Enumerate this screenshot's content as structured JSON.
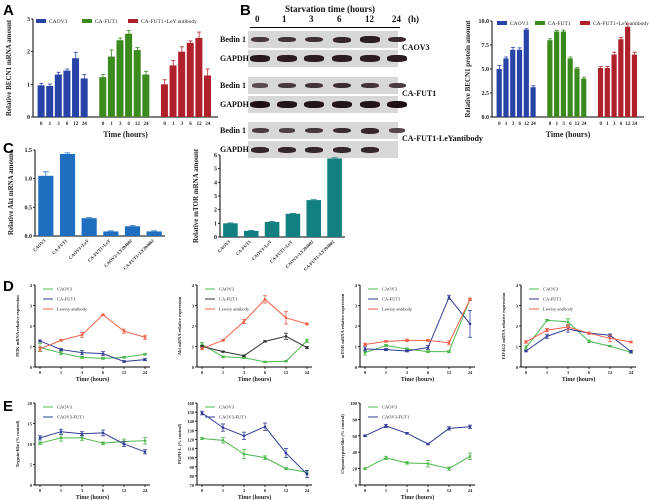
{
  "panels": {
    "A": "A",
    "B": "B",
    "C": "C",
    "D": "D",
    "E": "E"
  },
  "colors": {
    "blue": "#2743a8",
    "green": "#3a8a1e",
    "red": "#b0202a",
    "akt_bar": "#1f6fc0",
    "mtor_bar": "#128080",
    "line_green": "#4cb84c",
    "line_navy": "#323c96",
    "line_red": "#f0604a",
    "line_black": "#333333"
  },
  "blot": {
    "title": "Starvation time (hours)",
    "timepoints": [
      "0",
      "1",
      "3",
      "6",
      "12",
      "24"
    ],
    "unit": "(h)",
    "row_labels": [
      "Bedin 1",
      "GAPDH"
    ],
    "groups": [
      {
        "name": "CAOV3",
        "bedin": [
          0.55,
          0.6,
          0.65,
          0.75,
          0.85,
          0.7
        ],
        "gapdh": [
          0.9,
          0.85,
          0.85,
          0.85,
          0.85,
          0.85
        ]
      },
      {
        "name": "CA-FUT1",
        "bedin": [
          0.35,
          0.55,
          0.6,
          0.7,
          0.6,
          0.5
        ],
        "gapdh": [
          1.0,
          0.95,
          0.95,
          0.95,
          0.95,
          1.0
        ]
      },
      {
        "name": "CA-FUT1-LeYantibody",
        "bedin": [
          0.5,
          0.45,
          0.55,
          0.7,
          0.75,
          0.4
        ],
        "gapdh": [
          0.75,
          0.75,
          0.75,
          0.75,
          0.75,
          0.0
        ]
      }
    ]
  },
  "chart_data": [
    {
      "id": "A",
      "type": "bar",
      "title": "",
      "xlabel": "Time (hours)",
      "ylabel": "Relative BECN1 mRNA amount",
      "ylim": [
        0,
        3
      ],
      "yticks": [
        "0",
        "1",
        "2",
        "3"
      ],
      "categories": [
        "0",
        "1",
        "3",
        "6",
        "12",
        "24"
      ],
      "legend": "top",
      "series": [
        {
          "name": "CAOV3",
          "values": [
            0.97,
            0.95,
            1.3,
            1.42,
            1.8,
            1.18
          ],
          "errors": [
            0.06,
            0.06,
            0.07,
            0.05,
            0.18,
            0.12
          ]
        },
        {
          "name": "CA-FUT1",
          "values": [
            1.22,
            1.85,
            2.35,
            2.55,
            2.05,
            1.3
          ],
          "errors": [
            0.08,
            0.2,
            0.07,
            0.1,
            0.08,
            0.1
          ]
        },
        {
          "name": "CA-FUT1+LeY antibody",
          "values": [
            1.0,
            1.58,
            2.0,
            2.27,
            2.42,
            1.27
          ],
          "errors": [
            0.14,
            0.15,
            0.15,
            0.06,
            0.18,
            0.2
          ]
        }
      ]
    },
    {
      "id": "B",
      "type": "bar",
      "title": "",
      "xlabel": "Time (hours)",
      "ylabel": "Relative BECN1 protein amount",
      "ylim": [
        0,
        10
      ],
      "yticks": [
        "0.0",
        "2.5",
        "5.0",
        "7.5",
        "10.0"
      ],
      "categories": [
        "0",
        "1",
        "3",
        "6",
        "12",
        "24"
      ],
      "legend": "top",
      "series": [
        {
          "name": "CAOV3",
          "values": [
            5.0,
            6.1,
            7.0,
            7.0,
            9.1,
            3.1
          ],
          "errors": [
            0.35,
            0.15,
            0.25,
            0.2,
            0.1,
            0.15
          ]
        },
        {
          "name": "CA-FUT1",
          "values": [
            8.0,
            8.9,
            8.9,
            6.1,
            5.05,
            4.0
          ],
          "errors": [
            0.15,
            0.1,
            0.15,
            0.15,
            0.1,
            0.15
          ]
        },
        {
          "name": "CA-FUT1+LeY antibody",
          "values": [
            5.1,
            5.1,
            6.5,
            8.1,
            9.4,
            6.5
          ],
          "errors": [
            0.15,
            0.15,
            0.25,
            0.2,
            0.3,
            0.25
          ]
        }
      ]
    },
    {
      "id": "C-akt",
      "type": "bar",
      "title": "",
      "xlabel": "",
      "ylabel": "Relative Akt mRNA amount",
      "ylim": [
        0,
        1.5
      ],
      "yticks": [
        "0.0",
        "0.5",
        "1.0",
        "1.5"
      ],
      "categories": [
        "CAOV3",
        "CA-FUT1",
        "CAOV3+LeY",
        "CA-FUT1+LeY",
        "CAOV3+LY294002",
        "CA-FUT1+LY294002"
      ],
      "values": [
        1.05,
        1.43,
        0.31,
        0.08,
        0.17,
        0.08
      ],
      "errors": [
        0.07,
        0.02,
        0.01,
        0.01,
        0.01,
        0.01
      ]
    },
    {
      "id": "C-mtor",
      "type": "bar",
      "title": "",
      "xlabel": "",
      "ylabel": "Relative mTOR mRNA amount",
      "ylim": [
        0,
        6
      ],
      "yticks": [
        "0",
        "1",
        "2",
        "3",
        "4",
        "5",
        "6"
      ],
      "categories": [
        "CAOV3",
        "CA-FUT1",
        "CAOV3+LeY",
        "CA-FUT1+LeY",
        "CAOV3+LY294002",
        "CA-FUT1+LY294002"
      ],
      "values": [
        1.0,
        0.45,
        1.1,
        1.7,
        2.7,
        5.75
      ],
      "errors": [
        0.03,
        0.03,
        0.03,
        0.03,
        0.03,
        0.05
      ]
    },
    {
      "id": "D-pi3k",
      "type": "line",
      "xlabel": "Time (hours)",
      "ylabel": "PI3K mRNA relative expression",
      "ylim": [
        0,
        4
      ],
      "yticks": [
        "0",
        "1",
        "2",
        "3",
        "4"
      ],
      "categories": [
        "0",
        "1",
        "3",
        "6",
        "12",
        "24"
      ],
      "legend": "top-left",
      "series": [
        {
          "name": "CAOV3",
          "color": "line_green",
          "values": [
            0.95,
            0.68,
            0.47,
            0.42,
            0.47,
            0.62
          ],
          "errors": [
            0.2,
            0.08,
            0.04,
            0.04,
            0.04,
            0.04
          ]
        },
        {
          "name": "CA-FUT1",
          "color": "line_navy",
          "values": [
            1.27,
            0.85,
            0.7,
            0.65,
            0.27,
            0.36
          ],
          "errors": [
            0.05,
            0.05,
            0.1,
            0.1,
            0.04,
            0.05
          ]
        },
        {
          "name": "Lewisy antibody",
          "color": "line_red",
          "values": [
            0.88,
            1.3,
            1.57,
            2.55,
            1.75,
            1.45
          ],
          "errors": [
            0.1,
            0.04,
            0.12,
            0.03,
            0.1,
            0.1
          ]
        }
      ]
    },
    {
      "id": "D-akt",
      "type": "line",
      "xlabel": "Time (hours)",
      "ylabel": "Akt mRNA relative expression",
      "ylim": [
        0,
        4
      ],
      "yticks": [
        "0",
        "1",
        "2",
        "3",
        "4"
      ],
      "categories": [
        "0",
        "1",
        "3",
        "6",
        "12",
        "24"
      ],
      "legend": "top-left",
      "series": [
        {
          "name": "CAOV3",
          "color": "line_green",
          "values": [
            1.1,
            0.5,
            0.45,
            0.25,
            0.28,
            1.28
          ],
          "errors": [
            0.1,
            0.03,
            0.03,
            0.03,
            0.03,
            0.08
          ]
        },
        {
          "name": "CA-FUT1",
          "color": "line_black",
          "values": [
            1.0,
            0.75,
            0.55,
            1.25,
            1.5,
            0.95
          ],
          "errors": [
            0.05,
            0.03,
            0.03,
            0.03,
            0.15,
            0.05
          ]
        },
        {
          "name": "Lewisy antibody",
          "color": "line_red",
          "values": [
            0.9,
            1.3,
            2.22,
            3.3,
            2.4,
            2.1
          ],
          "errors": [
            0.05,
            0.03,
            0.1,
            0.18,
            0.3,
            0.05
          ]
        }
      ]
    },
    {
      "id": "D-mtor",
      "type": "line",
      "xlabel": "Time (hours)",
      "ylabel": "mTOR mRNA relative expression",
      "ylim": [
        0,
        4
      ],
      "yticks": [
        "0",
        "1",
        "2",
        "3",
        "4"
      ],
      "categories": [
        "0",
        "1",
        "3",
        "6",
        "12",
        "24"
      ],
      "legend": "top-left",
      "series": [
        {
          "name": "CAOV3",
          "color": "line_green",
          "values": [
            0.7,
            1.05,
            0.88,
            0.75,
            0.75,
            3.3
          ],
          "errors": [
            0.12,
            0.05,
            0.04,
            0.04,
            0.05,
            0.05
          ]
        },
        {
          "name": "CA-FUT1",
          "color": "line_navy",
          "values": [
            0.88,
            0.85,
            0.78,
            0.95,
            3.4,
            2.1
          ],
          "errors": [
            0.1,
            0.05,
            0.04,
            0.1,
            0.1,
            0.65
          ]
        },
        {
          "name": "Lewisy antibody",
          "color": "line_red",
          "values": [
            1.1,
            1.25,
            1.3,
            1.3,
            1.18,
            3.3
          ],
          "errors": [
            0.06,
            0.04,
            0.06,
            0.05,
            0.1,
            0.06
          ]
        }
      ]
    },
    {
      "id": "D-eif4g2",
      "type": "line",
      "xlabel": "Time (hours)",
      "ylabel": "EIF4G2 mRNA relative expression",
      "ylim": [
        0,
        4
      ],
      "yticks": [
        "0",
        "1",
        "2",
        "3",
        "4"
      ],
      "categories": [
        "0",
        "1",
        "3",
        "6",
        "12",
        "24"
      ],
      "legend": "top-left",
      "series": [
        {
          "name": "CAOV3",
          "color": "line_green",
          "values": [
            0.95,
            2.28,
            2.2,
            1.25,
            1.02,
            0.72
          ],
          "errors": [
            0.08,
            0.04,
            0.15,
            0.06,
            0.03,
            0.05
          ]
        },
        {
          "name": "CA-FUT1",
          "color": "line_navy",
          "values": [
            0.78,
            1.5,
            1.85,
            1.65,
            1.55,
            0.75
          ],
          "errors": [
            0.04,
            0.1,
            0.15,
            0.05,
            0.06,
            0.06
          ]
        },
        {
          "name": "Lewisy antibody",
          "color": "line_red",
          "values": [
            1.22,
            1.8,
            1.95,
            1.65,
            1.4,
            1.22
          ],
          "errors": [
            0.06,
            0.08,
            0.12,
            0.05,
            0.15,
            0.04
          ]
        }
      ]
    },
    {
      "id": "E-trypsin",
      "type": "line",
      "xlabel": "Time (hours)",
      "ylabel": "Trypsin-like (% control)",
      "ylim": [
        0,
        20
      ],
      "yticks": [
        "0",
        "5",
        "10",
        "15",
        "20"
      ],
      "categories": [
        "0",
        "1",
        "3",
        "6",
        "12",
        "24"
      ],
      "legend": "top-left",
      "series": [
        {
          "name": "CAOV3",
          "color": "line_green",
          "values": [
            10.2,
            11.5,
            11.5,
            10.2,
            10.6,
            10.8
          ],
          "errors": [
            0.3,
            0.8,
            0.6,
            0.3,
            0.6,
            0.8
          ]
        },
        {
          "name": "CAOV3-FUT1",
          "color": "line_navy",
          "values": [
            11.5,
            13.0,
            12.5,
            12.7,
            10.0,
            8.1
          ],
          "errors": [
            0.5,
            0.6,
            0.5,
            0.7,
            0.6,
            0.5
          ]
        }
      ]
    },
    {
      "id": "E-pgph",
      "type": "line",
      "xlabel": "Time (hours)",
      "ylabel": "PGPH-L (% control)",
      "ylim": [
        70,
        160
      ],
      "yticks": [
        "70",
        "80",
        "90",
        "100",
        "110",
        "120",
        "130",
        "140",
        "150",
        "160"
      ],
      "categories": [
        "0",
        "1",
        "3",
        "6",
        "12",
        "24"
      ],
      "legend": "top-left",
      "series": [
        {
          "name": "CAOV3",
          "color": "line_green",
          "values": [
            121,
            119,
            104,
            100,
            88,
            84
          ],
          "errors": [
            1,
            3,
            5,
            2,
            1,
            2
          ]
        },
        {
          "name": "CAOV3-FUT1",
          "color": "line_navy",
          "values": [
            149,
            133,
            124,
            134,
            105,
            82
          ],
          "errors": [
            2,
            4,
            4,
            4,
            5,
            4
          ]
        }
      ]
    },
    {
      "id": "E-chymo",
      "type": "line",
      "xlabel": "Time (hours)",
      "ylabel": "Chymotrypsin-like (% control)",
      "ylim": [
        0,
        100
      ],
      "yticks": [
        "0",
        "20",
        "40",
        "60",
        "80",
        "100"
      ],
      "categories": [
        "0",
        "1",
        "3",
        "6",
        "12",
        "24"
      ],
      "legend": "top-left",
      "series": [
        {
          "name": "CAOV3",
          "color": "line_green",
          "values": [
            20,
            33,
            27,
            26,
            20,
            35
          ],
          "errors": [
            1,
            2,
            1.5,
            4,
            2,
            4
          ]
        },
        {
          "name": "CAOV3-FUT1",
          "color": "line_navy",
          "values": [
            60,
            72,
            63,
            50,
            69,
            71
          ],
          "errors": [
            1,
            2,
            1,
            1,
            2,
            2
          ]
        }
      ]
    }
  ]
}
